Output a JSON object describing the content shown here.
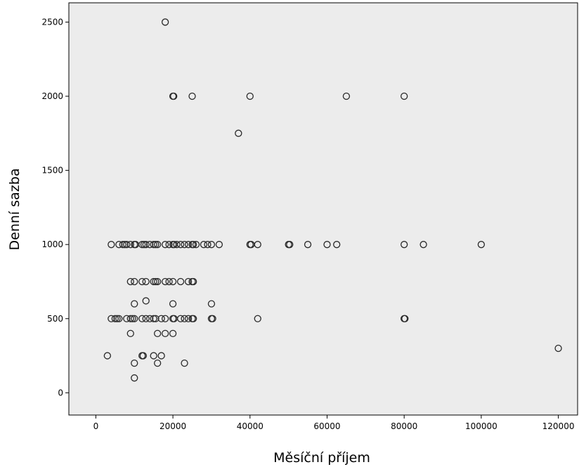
{
  "chart_data": {
    "type": "scatter",
    "title": "",
    "xlabel": "Měsíční příjem",
    "ylabel": "Denní sazba",
    "xlim": [
      -7000,
      125000
    ],
    "ylim": [
      -150,
      2630
    ],
    "x_ticks": [
      0,
      20000,
      40000,
      60000,
      80000,
      100000,
      120000
    ],
    "y_ticks": [
      0,
      500,
      1000,
      1500,
      2000,
      2500
    ],
    "grid": false,
    "legend": "none",
    "colors": {
      "plot_background": "#ececec",
      "marker_stroke": "#2a2a2a",
      "frame": "#000000"
    },
    "series": [
      {
        "marker": "hollow-circle",
        "points": [
          [
            18000,
            2500
          ],
          [
            20000,
            2000
          ],
          [
            20200,
            2000
          ],
          [
            25000,
            2000
          ],
          [
            40000,
            2000
          ],
          [
            65000,
            2000
          ],
          [
            80000,
            2000
          ],
          [
            37000,
            1750
          ],
          [
            4000,
            1000
          ],
          [
            6000,
            1000
          ],
          [
            7000,
            1000
          ],
          [
            7500,
            1000
          ],
          [
            8000,
            1000
          ],
          [
            9000,
            1000
          ],
          [
            10000,
            1000
          ],
          [
            10300,
            1000
          ],
          [
            12000,
            1000
          ],
          [
            12500,
            1000
          ],
          [
            13000,
            1000
          ],
          [
            14000,
            1000
          ],
          [
            15000,
            1000
          ],
          [
            15500,
            1000
          ],
          [
            16000,
            1000
          ],
          [
            18000,
            1000
          ],
          [
            19000,
            1000
          ],
          [
            20000,
            1000
          ],
          [
            20300,
            1000
          ],
          [
            21000,
            1000
          ],
          [
            22000,
            1000
          ],
          [
            23000,
            1000
          ],
          [
            24000,
            1000
          ],
          [
            25000,
            1000
          ],
          [
            25300,
            1000
          ],
          [
            26000,
            1000
          ],
          [
            28000,
            1000
          ],
          [
            29000,
            1000
          ],
          [
            30000,
            1000
          ],
          [
            32000,
            1000
          ],
          [
            40000,
            1000
          ],
          [
            40300,
            1000
          ],
          [
            42000,
            1000
          ],
          [
            50000,
            1000
          ],
          [
            50300,
            1000
          ],
          [
            55000,
            1000
          ],
          [
            60000,
            1000
          ],
          [
            62500,
            1000
          ],
          [
            80000,
            1000
          ],
          [
            85000,
            1000
          ],
          [
            100000,
            1000
          ],
          [
            9000,
            750
          ],
          [
            10000,
            750
          ],
          [
            12000,
            750
          ],
          [
            13000,
            750
          ],
          [
            15000,
            750
          ],
          [
            15500,
            750
          ],
          [
            16000,
            750
          ],
          [
            18000,
            750
          ],
          [
            19000,
            750
          ],
          [
            20000,
            750
          ],
          [
            22000,
            750
          ],
          [
            24000,
            750
          ],
          [
            25000,
            750
          ],
          [
            25300,
            750
          ],
          [
            13000,
            620
          ],
          [
            10000,
            600
          ],
          [
            20000,
            600
          ],
          [
            30000,
            600
          ],
          [
            4000,
            500
          ],
          [
            5000,
            500
          ],
          [
            5500,
            500
          ],
          [
            6000,
            500
          ],
          [
            8000,
            500
          ],
          [
            9000,
            500
          ],
          [
            9500,
            500
          ],
          [
            10000,
            500
          ],
          [
            12000,
            500
          ],
          [
            13000,
            500
          ],
          [
            14000,
            500
          ],
          [
            15000,
            500
          ],
          [
            15500,
            500
          ],
          [
            17000,
            500
          ],
          [
            18000,
            500
          ],
          [
            20000,
            500
          ],
          [
            20300,
            500
          ],
          [
            22000,
            500
          ],
          [
            23000,
            500
          ],
          [
            24000,
            500
          ],
          [
            25000,
            500
          ],
          [
            25300,
            500
          ],
          [
            30000,
            500
          ],
          [
            30300,
            500
          ],
          [
            42000,
            500
          ],
          [
            80000,
            500
          ],
          [
            80200,
            500
          ],
          [
            9000,
            400
          ],
          [
            16000,
            400
          ],
          [
            18000,
            400
          ],
          [
            20000,
            400
          ],
          [
            120000,
            300
          ],
          [
            3000,
            250
          ],
          [
            12000,
            250
          ],
          [
            12300,
            250
          ],
          [
            15000,
            250
          ],
          [
            17000,
            250
          ],
          [
            10000,
            200
          ],
          [
            16000,
            200
          ],
          [
            23000,
            200
          ],
          [
            10000,
            100
          ]
        ]
      }
    ]
  }
}
